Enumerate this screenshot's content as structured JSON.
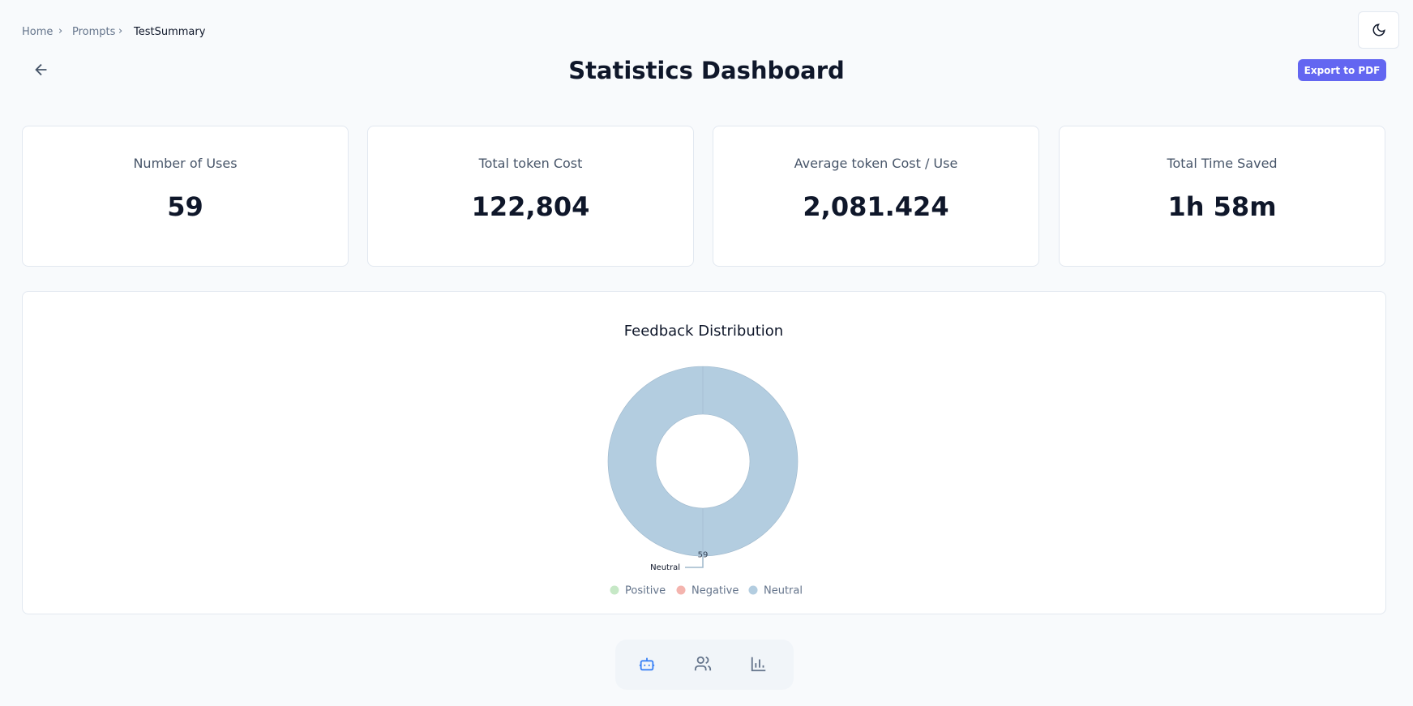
{
  "breadcrumb": [
    "Home",
    "Prompts",
    "TestSummary"
  ],
  "title": "Statistics Dashboard",
  "export_button": "Export to PDF",
  "stats": [
    {
      "label": "Number of Uses",
      "value": "59"
    },
    {
      "label": "Total token Cost",
      "value": "122,804"
    },
    {
      "label": "Average token Cost / Use",
      "value": "2,081.424"
    },
    {
      "label": "Total Time Saved",
      "value": "1h 58m"
    }
  ],
  "chart_data": {
    "type": "pie",
    "donut": true,
    "title": "Feedback Distribution",
    "categories": [
      "Positive",
      "Negative",
      "Neutral"
    ],
    "values": [
      0,
      0,
      59
    ],
    "colors": [
      "#c6e8c6",
      "#f4b4ae",
      "#b3cde0"
    ],
    "legend": "bottom"
  }
}
